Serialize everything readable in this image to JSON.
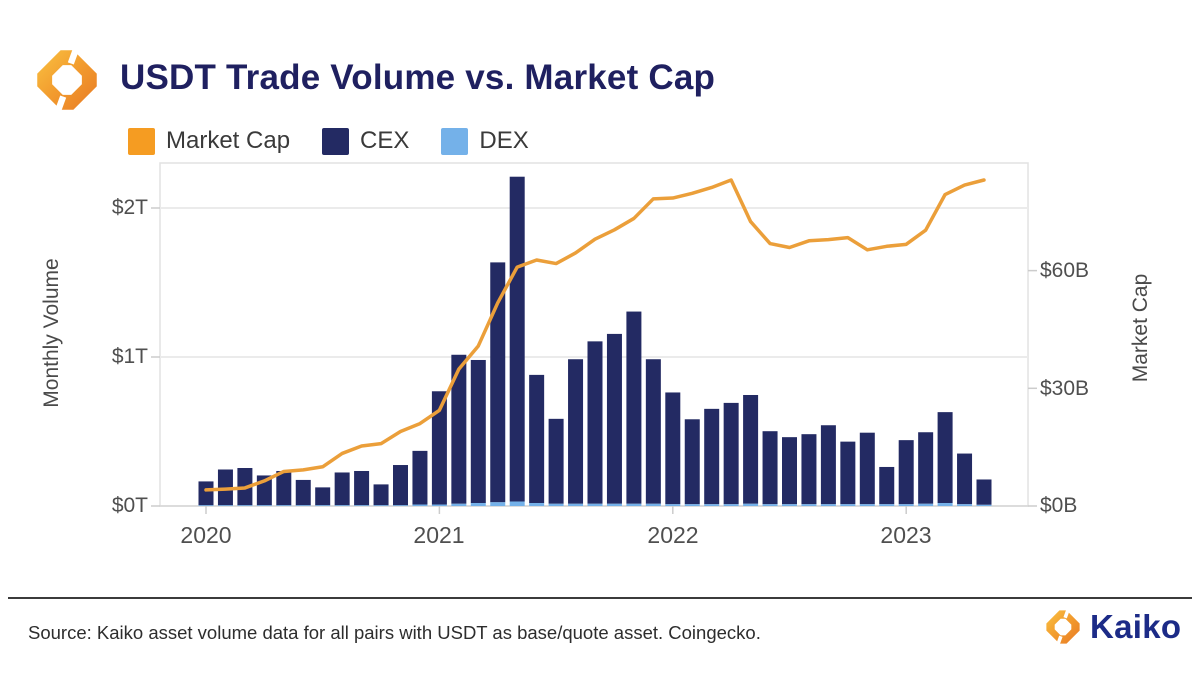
{
  "header": {
    "title": "USDT Trade Volume vs. Market Cap"
  },
  "legend": {
    "items": [
      {
        "label": "Market Cap",
        "color": "#f59c22"
      },
      {
        "label": "CEX",
        "color": "#232a63"
      },
      {
        "label": "DEX",
        "color": "#74b1e9"
      }
    ]
  },
  "chart_data": {
    "type": "bar+line",
    "title": "USDT Trade Volume vs. Market Cap",
    "legend_position": "top-left",
    "grid": "horizontal-only",
    "x": {
      "months": [
        "2020-01",
        "2020-02",
        "2020-03",
        "2020-04",
        "2020-05",
        "2020-06",
        "2020-07",
        "2020-08",
        "2020-09",
        "2020-10",
        "2020-11",
        "2020-12",
        "2021-01",
        "2021-02",
        "2021-03",
        "2021-04",
        "2021-05",
        "2021-06",
        "2021-07",
        "2021-08",
        "2021-09",
        "2021-10",
        "2021-11",
        "2021-12",
        "2022-01",
        "2022-02",
        "2022-03",
        "2022-04",
        "2022-05",
        "2022-06",
        "2022-07",
        "2022-08",
        "2022-09",
        "2022-10",
        "2022-11",
        "2022-12",
        "2023-01",
        "2023-02",
        "2023-03",
        "2023-04",
        "2023-05"
      ],
      "year_ticks": [
        "2020",
        "2021",
        "2022",
        "2023"
      ],
      "year_tick_month_index": [
        0,
        12,
        24,
        36
      ]
    },
    "left_axis": {
      "title": "Monthly Volume",
      "tick_labels": [
        "$0T",
        "$1T",
        "$2T"
      ],
      "tick_values_T": [
        0,
        1,
        2
      ],
      "range_T": [
        0,
        2.31
      ]
    },
    "right_axis": {
      "title": "Market Cap",
      "tick_labels": [
        "$0B",
        "$30B",
        "$60B"
      ],
      "tick_values_B": [
        0,
        30,
        60
      ],
      "range_B": [
        0,
        87.5
      ]
    },
    "series": [
      {
        "name": "CEX",
        "type": "bar",
        "stack": "volume",
        "axis": "left",
        "unit": "$T",
        "color": "#232a63",
        "values": [
          0.16,
          0.24,
          0.25,
          0.2,
          0.23,
          0.17,
          0.12,
          0.22,
          0.23,
          0.14,
          0.27,
          0.36,
          0.76,
          1.0,
          0.96,
          1.61,
          2.18,
          0.86,
          0.57,
          0.97,
          1.09,
          1.14,
          1.29,
          0.97,
          0.75,
          0.57,
          0.64,
          0.68,
          0.73,
          0.49,
          0.45,
          0.47,
          0.53,
          0.42,
          0.48,
          0.25,
          0.43,
          0.48,
          0.61,
          0.34,
          0.17
        ]
      },
      {
        "name": "DEX",
        "type": "bar",
        "stack": "volume",
        "axis": "left",
        "unit": "$T",
        "color": "#74b1e9",
        "values": [
          0.005,
          0.005,
          0.005,
          0.005,
          0.005,
          0.005,
          0.005,
          0.005,
          0.005,
          0.005,
          0.005,
          0.01,
          0.01,
          0.015,
          0.02,
          0.025,
          0.03,
          0.02,
          0.015,
          0.015,
          0.015,
          0.015,
          0.015,
          0.015,
          0.012,
          0.012,
          0.012,
          0.012,
          0.015,
          0.012,
          0.012,
          0.012,
          0.012,
          0.012,
          0.012,
          0.012,
          0.012,
          0.015,
          0.02,
          0.012,
          0.008
        ]
      },
      {
        "name": "Market Cap",
        "type": "line",
        "axis": "right",
        "unit": "$B",
        "color": "#eb9f3a",
        "values": [
          4.1,
          4.3,
          4.6,
          6.4,
          8.8,
          9.2,
          10.0,
          13.4,
          15.3,
          15.9,
          19.0,
          21.0,
          24.4,
          34.9,
          40.8,
          51.8,
          60.9,
          62.7,
          61.8,
          64.5,
          68.0,
          70.4,
          73.3,
          78.3,
          78.5,
          79.7,
          81.2,
          83.1,
          72.5,
          66.9,
          65.9,
          67.6,
          67.9,
          68.4,
          65.3,
          66.2,
          66.7,
          70.3,
          79.4,
          81.8,
          83.1
        ]
      }
    ]
  },
  "footer": {
    "source": "Source: Kaiko asset volume data for all pairs with USDT as base/quote asset. Coingecko.",
    "brand": "Kaiko"
  }
}
